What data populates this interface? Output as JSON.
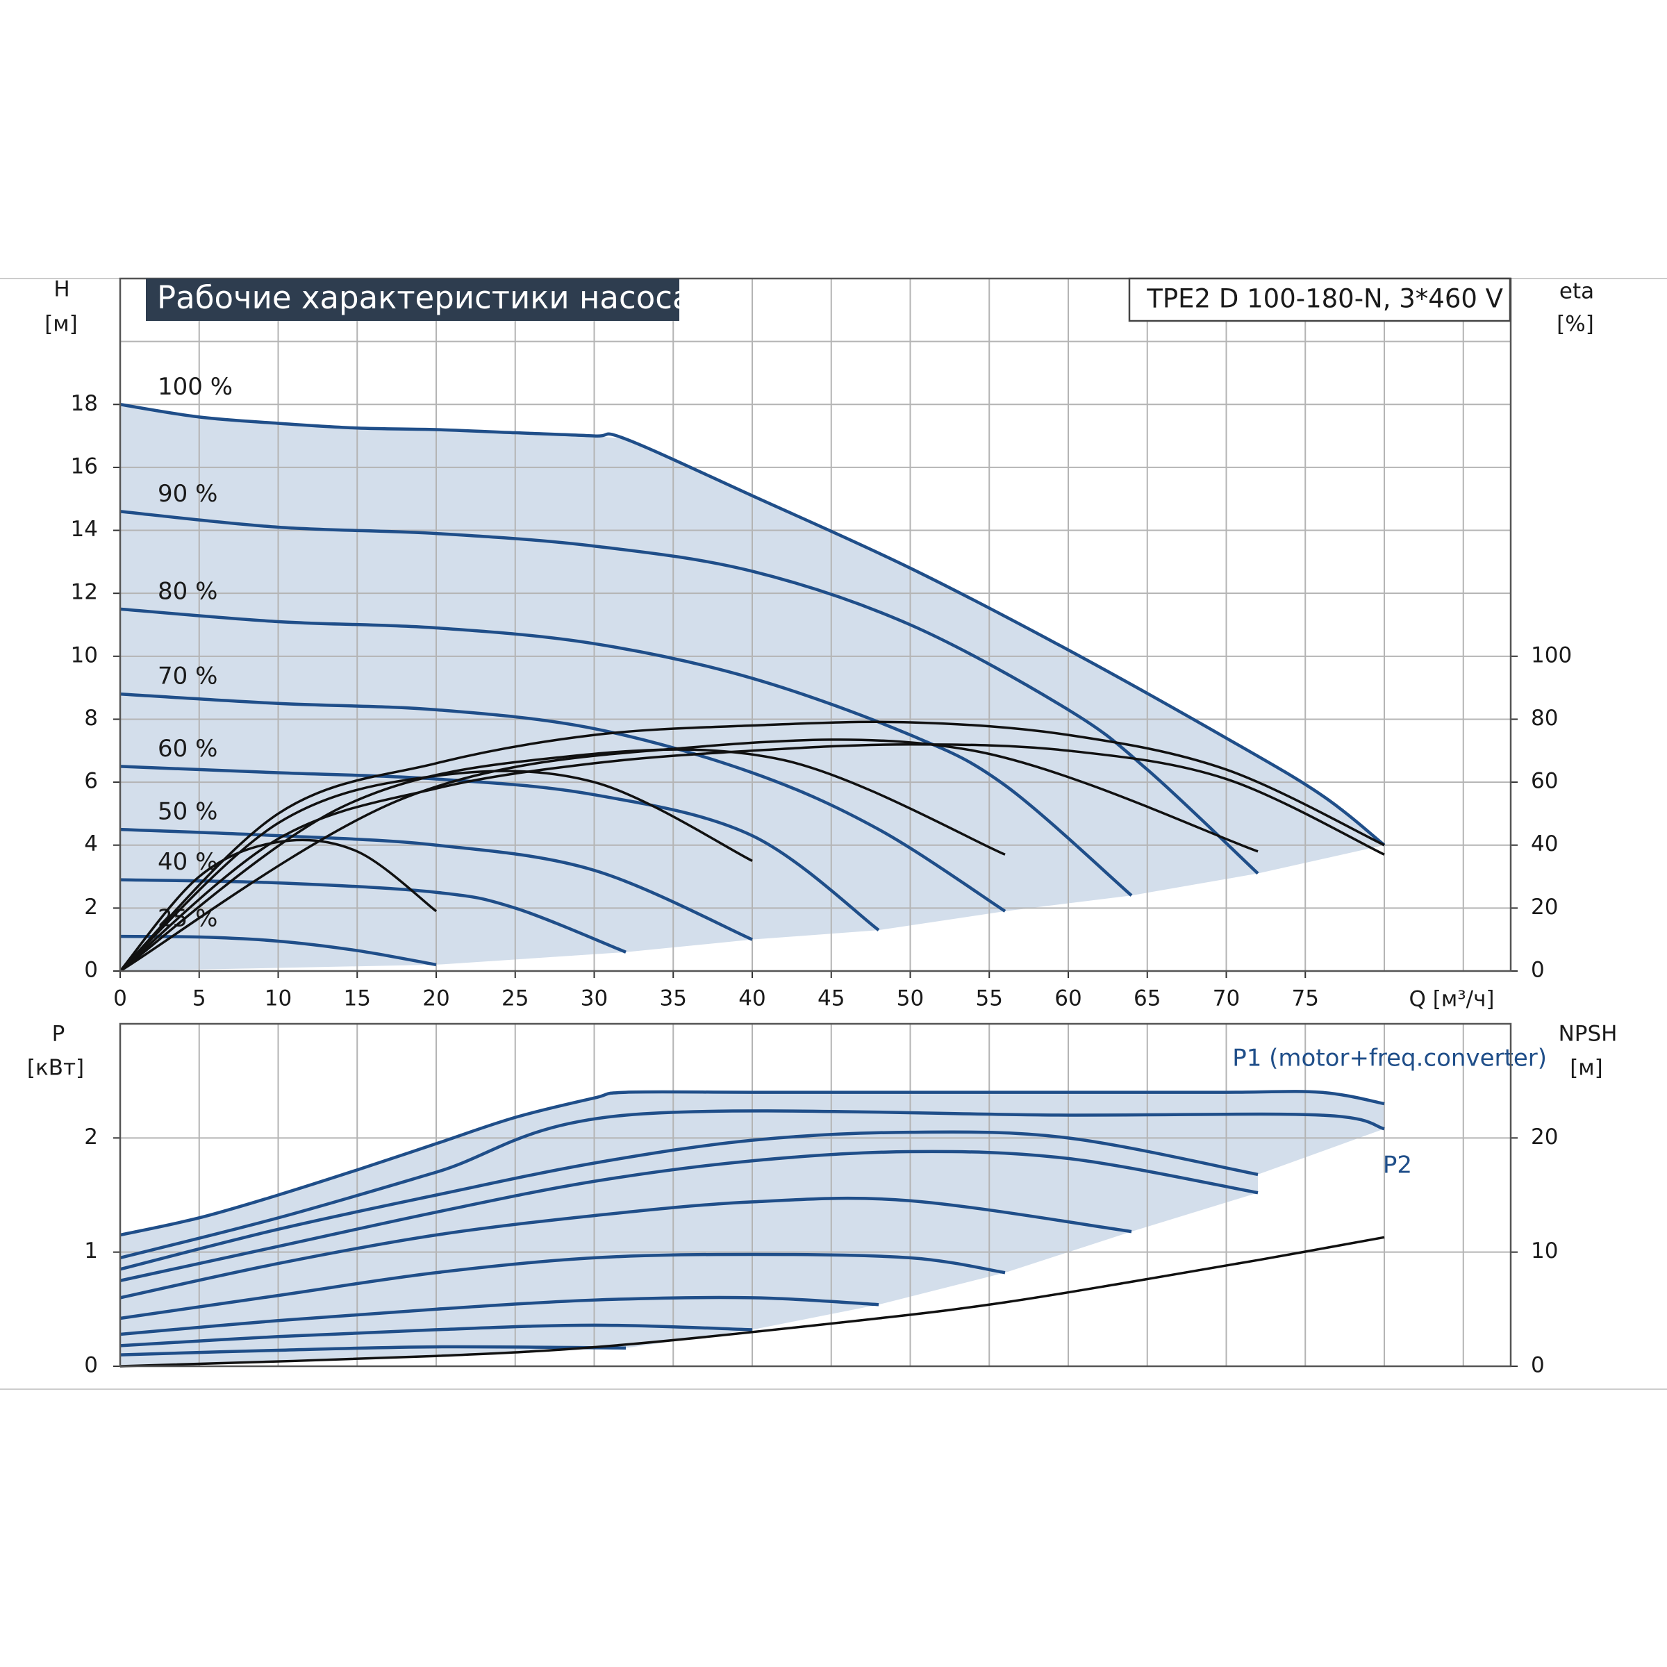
{
  "chart_data": [
    {
      "type": "line",
      "title": "Рабочие характеристики насоса",
      "model": "TPE2 D 100-180-N, 3*460 V",
      "ylabel": "H",
      "yunit": "[м]",
      "y2label": "eta",
      "y2unit": "[%]",
      "xlabel": "Q [м³/ч]",
      "xlim": [
        0,
        88
      ],
      "xticks": [
        0,
        5,
        10,
        15,
        20,
        25,
        30,
        35,
        40,
        45,
        50,
        55,
        60,
        65,
        70,
        75
      ],
      "xgrid": [
        0,
        5,
        10,
        15,
        20,
        25,
        30,
        35,
        40,
        45,
        50,
        55,
        60,
        65,
        70,
        75,
        80,
        85
      ],
      "ylim": [
        0,
        22
      ],
      "yticks": [
        0,
        2,
        4,
        6,
        8,
        10,
        12,
        14,
        16,
        18
      ],
      "ygrid": [
        0,
        2,
        4,
        6,
        8,
        10,
        12,
        14,
        16,
        18,
        20
      ],
      "y2lim": [
        0,
        220
      ],
      "y2ticks": [
        0,
        20,
        40,
        60,
        80,
        100
      ],
      "grid": true,
      "area_color": "#d3deeb",
      "series": [
        {
          "name": "100 %",
          "color": "#1f4e89",
          "x": [
            0,
            5,
            10,
            15,
            20,
            25,
            30,
            32,
            40,
            50,
            60,
            70,
            76,
            80
          ],
          "values": [
            18,
            17.6,
            17.4,
            17.25,
            17.2,
            17.1,
            17.0,
            16.9,
            15.1,
            12.8,
            10.2,
            7.4,
            5.6,
            4.0
          ]
        },
        {
          "name": "90 %",
          "color": "#1f4e89",
          "x": [
            0,
            10,
            20,
            30,
            40,
            50,
            60,
            65,
            72
          ],
          "values": [
            14.6,
            14.1,
            13.9,
            13.5,
            12.7,
            11.0,
            8.3,
            6.4,
            3.1
          ]
        },
        {
          "name": "80 %",
          "color": "#1f4e89",
          "x": [
            0,
            10,
            20,
            30,
            40,
            50,
            56,
            64
          ],
          "values": [
            11.5,
            11.1,
            10.9,
            10.4,
            9.3,
            7.5,
            5.9,
            2.4
          ]
        },
        {
          "name": "70 %",
          "color": "#1f4e89",
          "x": [
            0,
            10,
            20,
            30,
            40,
            48,
            56
          ],
          "values": [
            8.8,
            8.5,
            8.3,
            7.7,
            6.3,
            4.5,
            1.9
          ]
        },
        {
          "name": "60 %",
          "color": "#1f4e89",
          "x": [
            0,
            10,
            20,
            30,
            40,
            48
          ],
          "values": [
            6.5,
            6.3,
            6.1,
            5.6,
            4.3,
            1.3
          ]
        },
        {
          "name": "50 %",
          "color": "#1f4e89",
          "x": [
            0,
            10,
            20,
            30,
            40
          ],
          "values": [
            4.5,
            4.3,
            4.0,
            3.2,
            1.0
          ]
        },
        {
          "name": "40 %",
          "color": "#1f4e89",
          "x": [
            0,
            10,
            20,
            25,
            32
          ],
          "values": [
            2.9,
            2.8,
            2.5,
            2.0,
            0.6
          ]
        },
        {
          "name": "25 %",
          "color": "#1f4e89",
          "x": [
            0,
            5,
            10,
            15,
            20
          ],
          "values": [
            1.1,
            1.08,
            0.95,
            0.65,
            0.2
          ]
        },
        {
          "axis": "y2",
          "color": "#111111",
          "x": [
            0,
            5,
            10,
            15,
            20
          ],
          "values": [
            0,
            30,
            41,
            38,
            19
          ]
        },
        {
          "axis": "y2",
          "color": "#111111",
          "x": [
            0,
            10,
            20,
            30,
            40
          ],
          "values": [
            0,
            47,
            62,
            60,
            35
          ]
        },
        {
          "axis": "y2",
          "color": "#111111",
          "x": [
            0,
            14,
            28,
            42,
            56
          ],
          "values": [
            0,
            52,
            68,
            67,
            37
          ]
        },
        {
          "axis": "y2",
          "color": "#111111",
          "x": [
            0,
            18,
            36,
            54,
            72
          ],
          "values": [
            0,
            55,
            71,
            70,
            38
          ]
        },
        {
          "axis": "y2",
          "color": "#111111",
          "x": [
            0,
            10,
            20,
            30,
            40,
            50,
            60,
            70,
            80
          ],
          "values": [
            0,
            42,
            58,
            66,
            70,
            72,
            70,
            61,
            37
          ]
        },
        {
          "axis": "y2",
          "color": "#111111",
          "x": [
            0,
            10,
            20,
            30,
            40,
            50,
            60,
            70,
            80
          ],
          "values": [
            0,
            50,
            66,
            75,
            78,
            79,
            75,
            64,
            40
          ]
        }
      ]
    },
    {
      "type": "line",
      "ylabel": "P",
      "yunit": "[кВт]",
      "y2label": "NPSH",
      "y2unit": "[м]",
      "xlim": [
        0,
        88
      ],
      "xgrid": [
        0,
        5,
        10,
        15,
        20,
        25,
        30,
        35,
        40,
        45,
        50,
        55,
        60,
        65,
        70,
        75,
        80,
        85
      ],
      "ylim": [
        0,
        3
      ],
      "yticks": [
        0,
        1,
        2
      ],
      "y2lim": [
        0,
        30
      ],
      "y2ticks": [
        0,
        10,
        20
      ],
      "grid": true,
      "area_color": "#d3deeb",
      "series": [
        {
          "name": "P1 (motor+freq.converter)",
          "color": "#1f4e89",
          "x": [
            0,
            5,
            10,
            15,
            20,
            25,
            30,
            32,
            40,
            50,
            60,
            70,
            76,
            80
          ],
          "values": [
            1.15,
            1.3,
            1.5,
            1.72,
            1.95,
            2.18,
            2.35,
            2.4,
            2.4,
            2.4,
            2.4,
            2.4,
            2.4,
            2.3
          ]
        },
        {
          "name": "P2",
          "color": "#1f4e89",
          "x": [
            0,
            10,
            20,
            32,
            60,
            76,
            80
          ],
          "values": [
            0.95,
            1.3,
            1.7,
            2.2,
            2.2,
            2.2,
            2.08
          ]
        },
        {
          "color": "#1f4e89",
          "x": [
            0,
            10,
            20,
            30,
            40,
            50,
            60,
            72
          ],
          "values": [
            0.85,
            1.2,
            1.5,
            1.78,
            1.98,
            2.05,
            2.0,
            1.68
          ]
        },
        {
          "color": "#1f4e89",
          "x": [
            0,
            10,
            20,
            30,
            40,
            50,
            60,
            72
          ],
          "values": [
            0.75,
            1.05,
            1.35,
            1.62,
            1.8,
            1.88,
            1.82,
            1.52
          ]
        },
        {
          "color": "#1f4e89",
          "x": [
            0,
            10,
            20,
            30,
            40,
            50,
            64
          ],
          "values": [
            0.6,
            0.9,
            1.15,
            1.32,
            1.44,
            1.45,
            1.18
          ]
        },
        {
          "color": "#1f4e89",
          "x": [
            0,
            10,
            20,
            30,
            40,
            50,
            56
          ],
          "values": [
            0.42,
            0.62,
            0.82,
            0.95,
            0.98,
            0.95,
            0.82
          ]
        },
        {
          "color": "#1f4e89",
          "x": [
            0,
            10,
            20,
            30,
            40,
            48
          ],
          "values": [
            0.28,
            0.4,
            0.5,
            0.58,
            0.6,
            0.54
          ]
        },
        {
          "color": "#1f4e89",
          "x": [
            0,
            10,
            20,
            30,
            40
          ],
          "values": [
            0.18,
            0.26,
            0.32,
            0.36,
            0.32
          ]
        },
        {
          "color": "#1f4e89",
          "x": [
            0,
            10,
            20,
            32
          ],
          "values": [
            0.1,
            0.14,
            0.17,
            0.16
          ]
        },
        {
          "axis": "y2",
          "color": "#111111",
          "x": [
            0,
            20,
            32,
            48,
            56,
            64,
            72,
            80
          ],
          "values": [
            0,
            0.9,
            1.9,
            4.2,
            5.6,
            7.4,
            9.3,
            11.3
          ]
        }
      ]
    }
  ]
}
